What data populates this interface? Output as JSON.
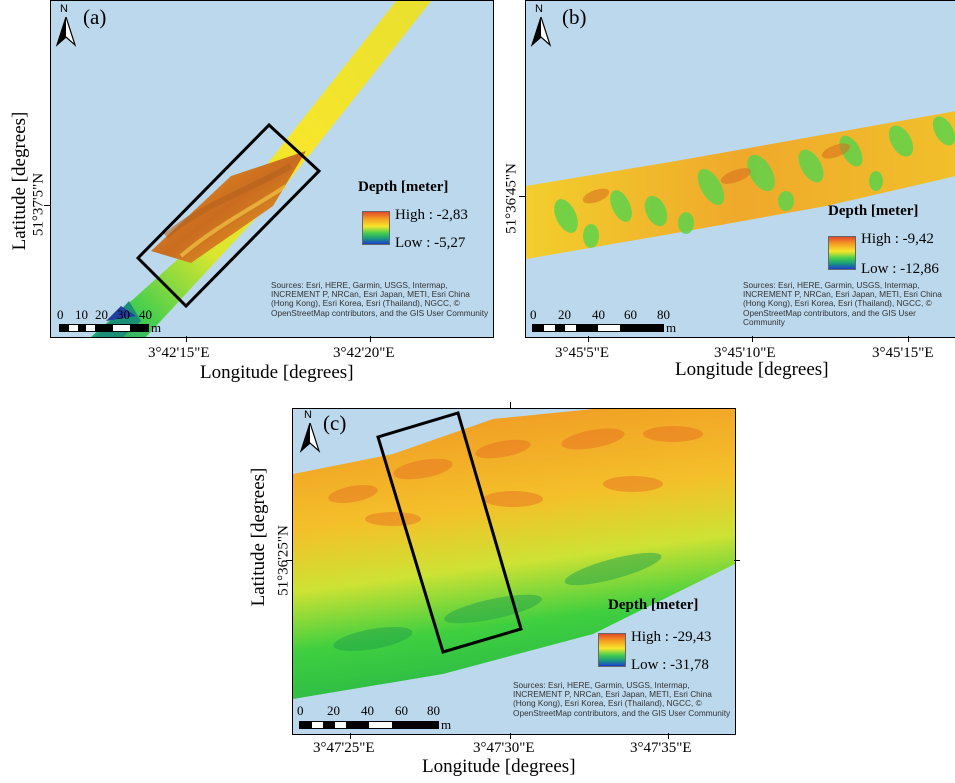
{
  "panels": {
    "a": {
      "letter": "(a)",
      "x_ticks": [
        "3°42'15\"E",
        "3°42'20\"E"
      ],
      "y_ticks": [
        "51°37'5\"N"
      ],
      "legend_title": "Depth [meter]",
      "legend_high": "High : -2,83",
      "legend_low": "Low : -5,27",
      "scale_numbers": [
        "0",
        "10",
        "20",
        "30",
        "40"
      ],
      "scale_unit": "m",
      "sources": "Sources: Esri, HERE, Garmin, USGS, Intermap, INCREMENT P, NRCan, Esri Japan, METI, Esri China (Hong Kong), Esri Korea, Esri (Thailand), NGCC, © OpenStreetMap contributors, and the GIS User Community"
    },
    "b": {
      "letter": "(b)",
      "x_ticks": [
        "3°45'5\"E",
        "3°45'10\"E",
        "3°45'15\"E"
      ],
      "y_ticks": [
        "51°36'45\"N"
      ],
      "legend_title": "Depth [meter]",
      "legend_high": "High : -9,42",
      "legend_low": "Low : -12,86",
      "scale_numbers": [
        "0",
        "20",
        "40",
        "60",
        "80"
      ],
      "scale_unit": "m",
      "sources": "Sources: Esri, HERE, Garmin, USGS, Intermap, INCREMENT P, NRCan, Esri Japan, METI, Esri China (Hong Kong), Esri Korea, Esri (Thailand), NGCC, © OpenStreetMap contributors, and the GIS User Community"
    },
    "c": {
      "letter": "(c)",
      "x_ticks": [
        "3°47'25\"E",
        "3°47'30\"E",
        "3°47'35\"E"
      ],
      "y_ticks": [
        "51°36'25\"N"
      ],
      "legend_title": "Depth [meter]",
      "legend_high": "High : -29,43",
      "legend_low": "Low : -31,78",
      "scale_numbers": [
        "0",
        "20",
        "40",
        "60",
        "80"
      ],
      "scale_unit": "m",
      "sources": "Sources: Esri, HERE, Garmin, USGS, Intermap, INCREMENT P, NRCan, Esri Japan, METI, Esri China (Hong Kong), Esri Korea, Esri (Thailand), NGCC, © OpenStreetMap contributors, and the GIS User Community"
    }
  },
  "axis_titles": {
    "longitude": "Longitude [degrees]",
    "latitude": "Latitude [degrees]"
  },
  "north_label": "N",
  "colors": {
    "water": "#bcd8ec",
    "depth_high": "#e4492c",
    "depth_mid": "#f7e62b",
    "depth_green": "#4cd04c",
    "depth_low": "#1b3fcf"
  },
  "icons": [
    "north-arrow-icon"
  ]
}
